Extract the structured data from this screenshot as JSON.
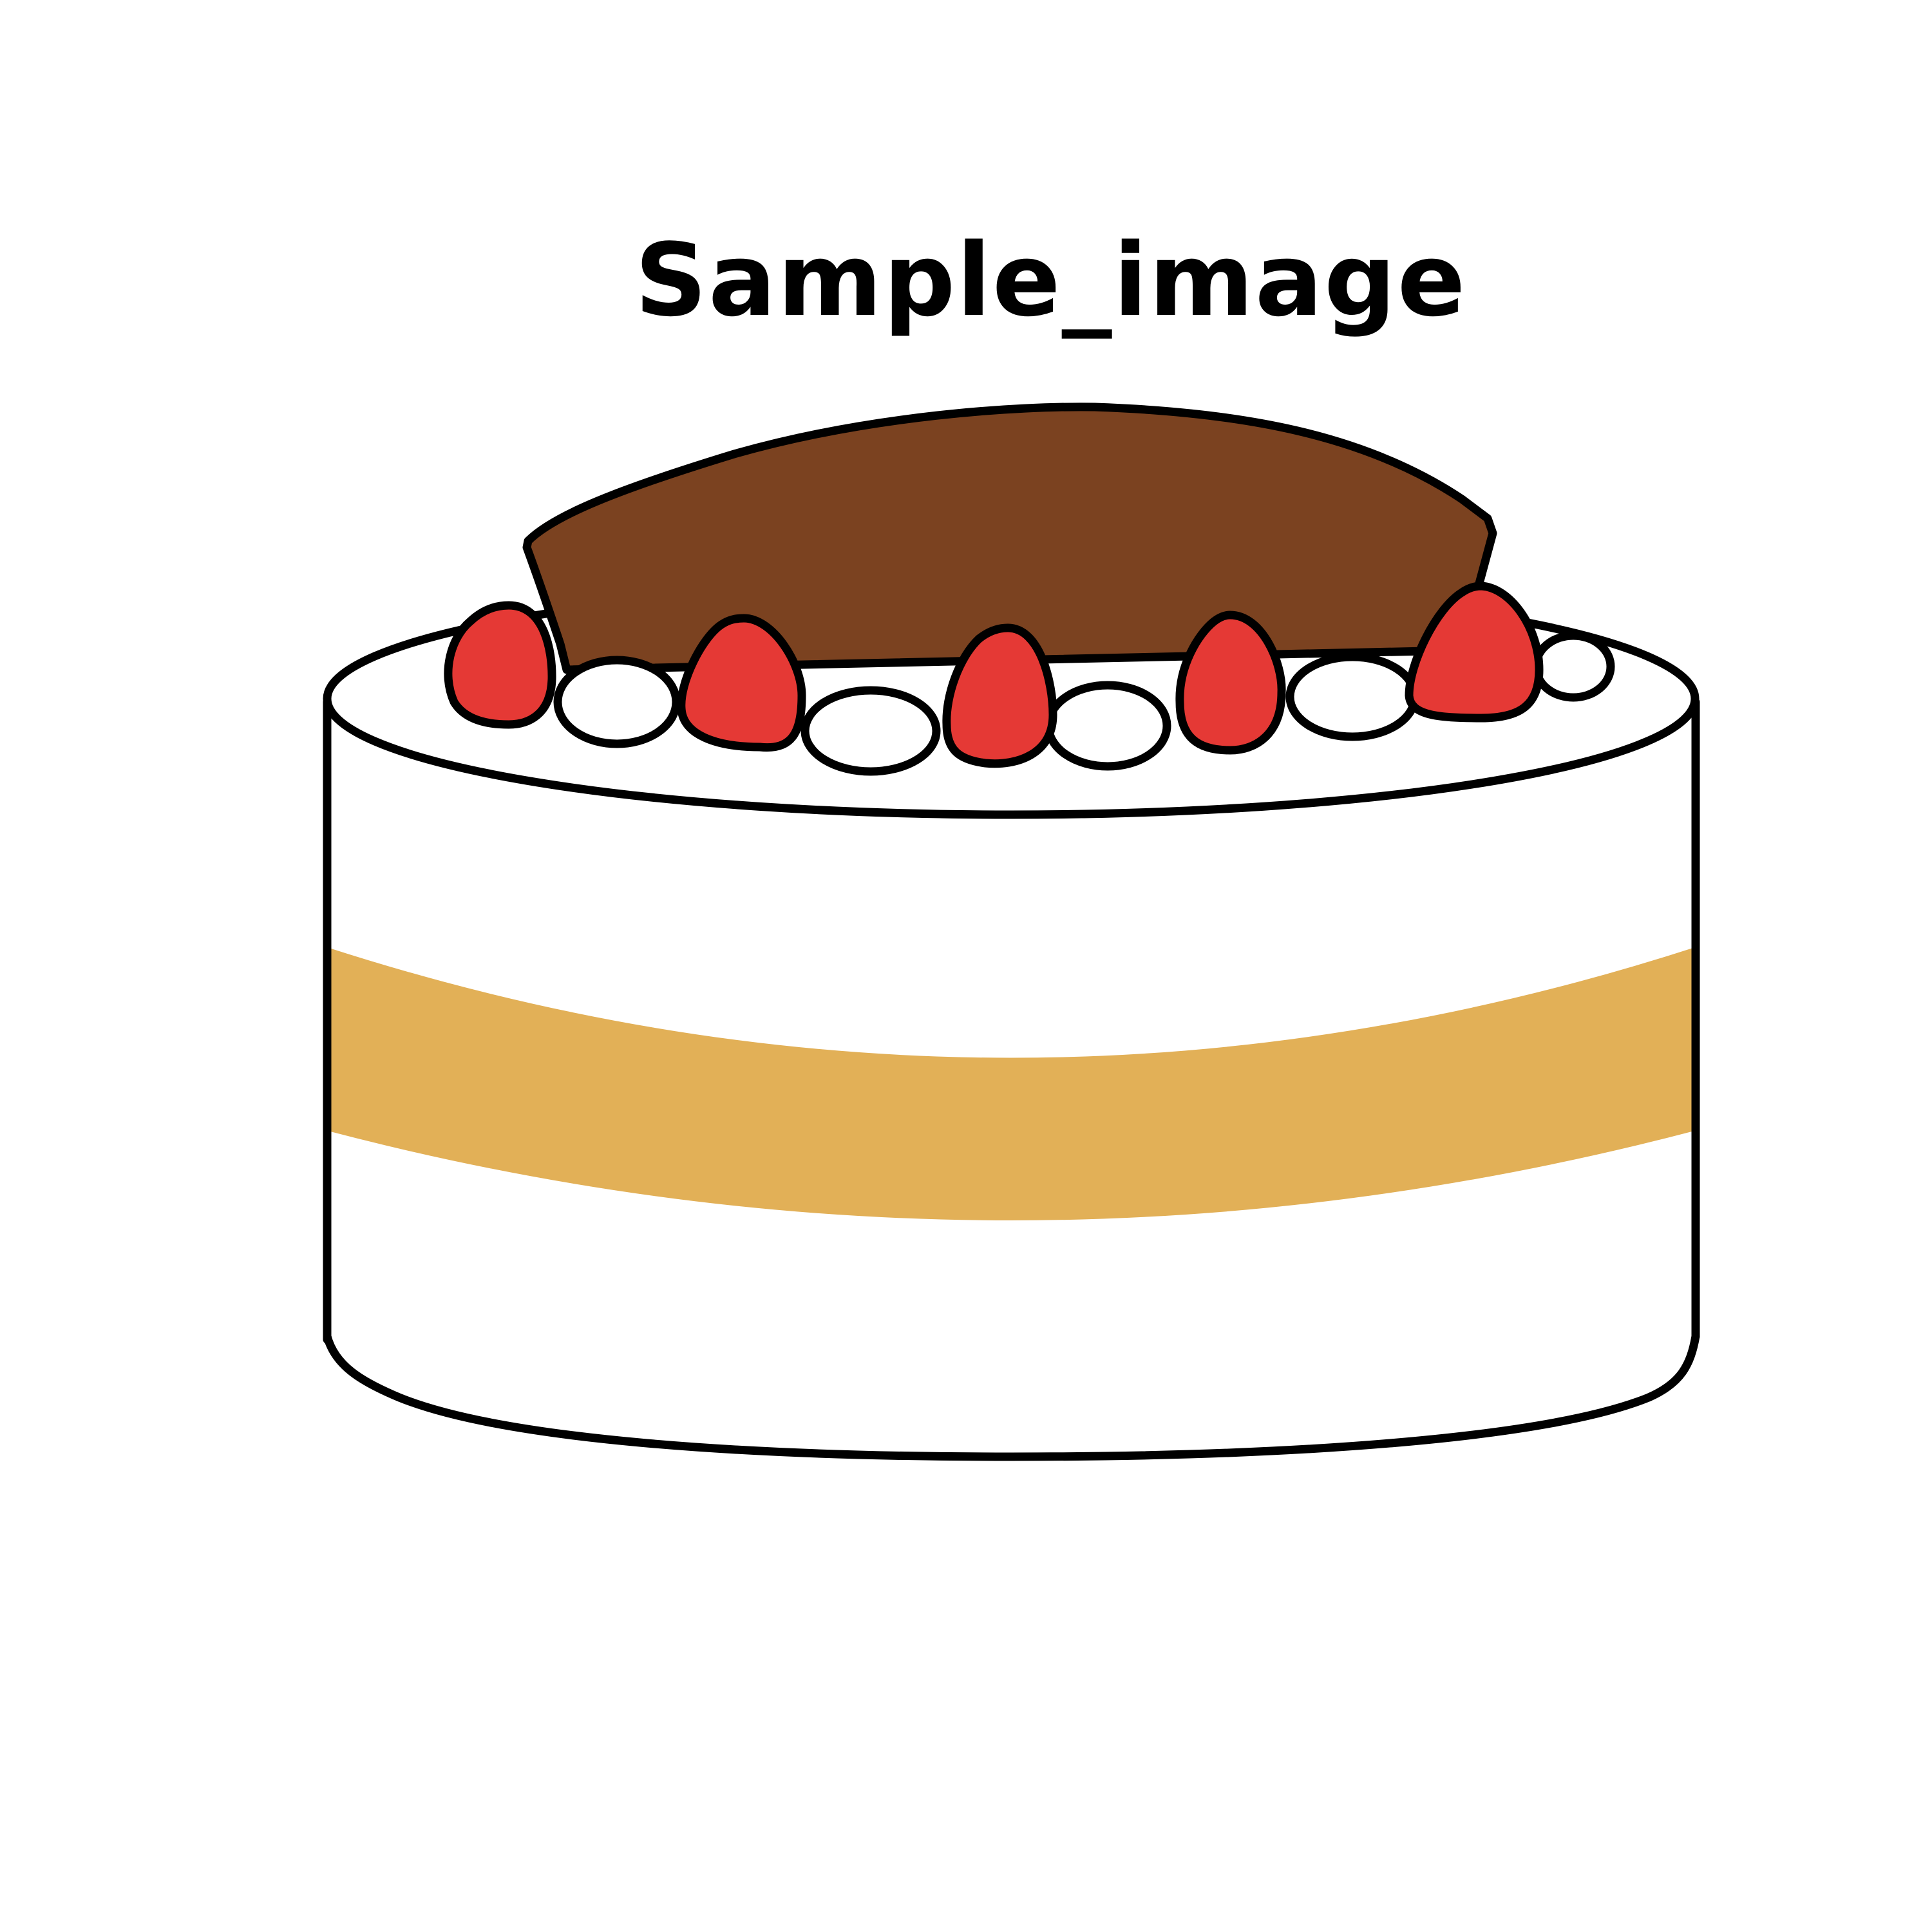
{
  "title": "Sample_image",
  "illustration": {
    "subject": "cake",
    "icons": [
      "cake-icon",
      "strawberry-icon",
      "whipped-cream-icon",
      "chocolate-plate-icon"
    ],
    "colors": {
      "background": "#ffffff",
      "outline": "#000000",
      "cream": "#ffffff",
      "sponge_band": "#e2b057",
      "chocolate": "#7b4220",
      "strawberry": "#e53935"
    }
  }
}
